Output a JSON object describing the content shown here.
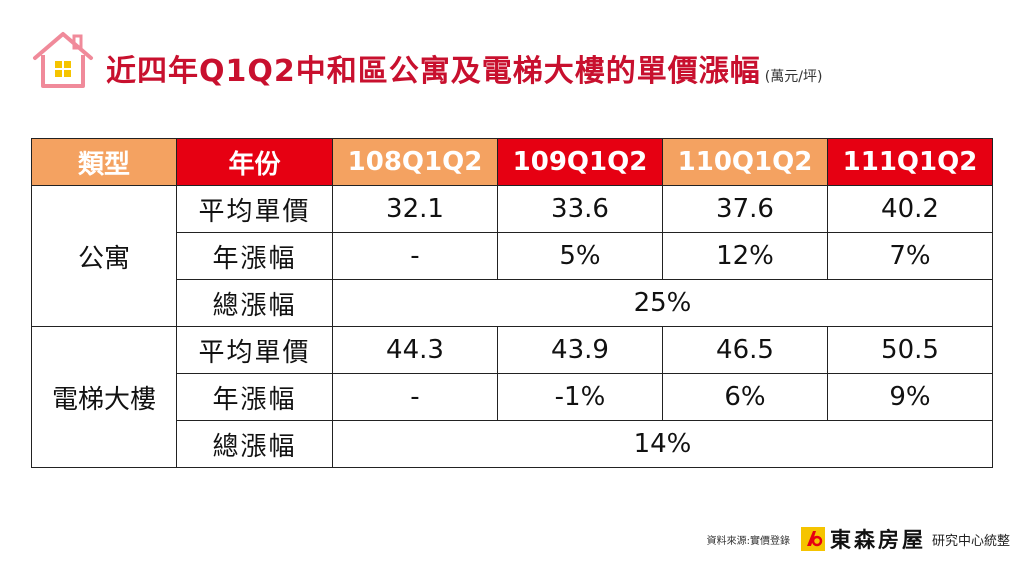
{
  "header": {
    "title": "近四年Q1Q2中和區公寓及電梯大樓的單價漲幅",
    "unit": "(萬元/坪)"
  },
  "table": {
    "headers": [
      "類型",
      "年份",
      "108Q1Q2",
      "109Q1Q2",
      "110Q1Q2",
      "111Q1Q2"
    ],
    "groups": [
      {
        "type": "公寓",
        "rows": [
          {
            "label": "平均單價",
            "values": [
              "32.1",
              "33.6",
              "37.6",
              "40.2"
            ]
          },
          {
            "label": "年漲幅",
            "values": [
              "-",
              "5%",
              "12%",
              "7%"
            ]
          },
          {
            "label": "總漲幅",
            "total": "25%"
          }
        ]
      },
      {
        "type": "電梯大樓",
        "rows": [
          {
            "label": "平均單價",
            "values": [
              "44.3",
              "43.9",
              "46.5",
              "50.5"
            ]
          },
          {
            "label": "年漲幅",
            "values": [
              "-",
              "-1%",
              "6%",
              "9%"
            ]
          },
          {
            "label": "總漲幅",
            "total": "14%"
          }
        ]
      }
    ]
  },
  "footer": {
    "source": "資料來源:實價登錄",
    "logo_text": "東森房屋",
    "center": "研究中心統整"
  },
  "colors": {
    "title": "#c8102e",
    "header_orange": "#f4a261",
    "header_red": "#e60012",
    "house_pink": "#f08a9a",
    "window_yellow": "#f5c400"
  }
}
